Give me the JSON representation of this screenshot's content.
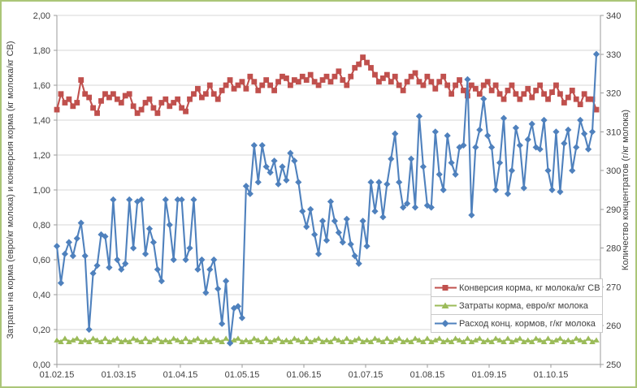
{
  "window": {
    "background": "#ffffff",
    "frame_border_color": "#abc678"
  },
  "chart_data": {
    "type": "line",
    "title": "",
    "grid": true,
    "legend_position": "middle-right",
    "x_axis": {
      "tick_labels": [
        "01.02.15",
        "01.03.15",
        "01.04.15",
        "01.05.15",
        "01.06.15",
        "01.07.15",
        "01.08.15",
        "01.09.15",
        "01.10.15"
      ]
    },
    "left_axis": {
      "title": "Затраты на корма (евро/кг молока) и конверсия корма (кг молока/кг СВ)",
      "min": 0,
      "max": 2,
      "step": 0.2,
      "tick_labels": [
        "0,00",
        "0,20",
        "0,40",
        "0,60",
        "0,80",
        "1,00",
        "1,20",
        "1,40",
        "1,60",
        "1,80",
        "2,00"
      ]
    },
    "right_axis": {
      "title": "Количество концентратов (г/кг молока)",
      "min": 250,
      "max": 340,
      "step": 10,
      "tick_labels": [
        "250",
        "260",
        "270",
        "280",
        "290",
        "300",
        "310",
        "320",
        "330",
        "340"
      ]
    },
    "series": [
      {
        "name": "Конверсия корма, кг молока/кг СВ",
        "color": "#C0504D",
        "axis": "left",
        "marker": "square",
        "values": [
          1.46,
          1.55,
          1.5,
          1.52,
          1.48,
          1.5,
          1.63,
          1.55,
          1.53,
          1.47,
          1.44,
          1.51,
          1.55,
          1.53,
          1.55,
          1.52,
          1.5,
          1.54,
          1.55,
          1.48,
          1.44,
          1.46,
          1.5,
          1.52,
          1.47,
          1.44,
          1.5,
          1.52,
          1.48,
          1.5,
          1.52,
          1.47,
          1.45,
          1.52,
          1.55,
          1.58,
          1.53,
          1.55,
          1.6,
          1.55,
          1.52,
          1.57,
          1.6,
          1.63,
          1.58,
          1.6,
          1.62,
          1.58,
          1.65,
          1.62,
          1.57,
          1.6,
          1.63,
          1.6,
          1.57,
          1.62,
          1.65,
          1.64,
          1.6,
          1.63,
          1.62,
          1.65,
          1.63,
          1.66,
          1.62,
          1.6,
          1.63,
          1.65,
          1.62,
          1.65,
          1.68,
          1.63,
          1.6,
          1.65,
          1.7,
          1.72,
          1.76,
          1.73,
          1.7,
          1.66,
          1.62,
          1.64,
          1.66,
          1.62,
          1.65,
          1.6,
          1.57,
          1.62,
          1.65,
          1.67,
          1.62,
          1.6,
          1.65,
          1.62,
          1.58,
          1.62,
          1.65,
          1.6,
          1.55,
          1.6,
          1.63,
          1.57,
          1.54,
          1.6,
          1.58,
          1.55,
          1.6,
          1.62,
          1.57,
          1.6,
          1.55,
          1.52,
          1.57,
          1.6,
          1.55,
          1.52,
          1.55,
          1.58,
          1.53,
          1.57,
          1.6,
          1.55,
          1.52,
          1.56,
          1.6,
          1.55,
          1.5,
          1.53,
          1.57,
          1.52,
          1.49,
          1.55,
          1.52,
          1.52,
          1.46
        ]
      },
      {
        "name": "Затраты корма, евро/кг молока",
        "color": "#9BBB59",
        "axis": "left",
        "marker": "triangle",
        "values": [
          0.14,
          0.13,
          0.15,
          0.13,
          0.14,
          0.15,
          0.13,
          0.14,
          0.13,
          0.15,
          0.14,
          0.13,
          0.15,
          0.13,
          0.14,
          0.15,
          0.13,
          0.14,
          0.13,
          0.15,
          0.14,
          0.13,
          0.15,
          0.13,
          0.14,
          0.15,
          0.13,
          0.14,
          0.13,
          0.15,
          0.14,
          0.13,
          0.15,
          0.13,
          0.14,
          0.15,
          0.13,
          0.14,
          0.13,
          0.15,
          0.14,
          0.13,
          0.15,
          0.13,
          0.14,
          0.15,
          0.13,
          0.14,
          0.13,
          0.15,
          0.14,
          0.13,
          0.15,
          0.13,
          0.14,
          0.15,
          0.13,
          0.14,
          0.13,
          0.15,
          0.14,
          0.13,
          0.15,
          0.13,
          0.14,
          0.15,
          0.13,
          0.14,
          0.13,
          0.15,
          0.14,
          0.13,
          0.15,
          0.13,
          0.14,
          0.15,
          0.13,
          0.14,
          0.13,
          0.15,
          0.14,
          0.13,
          0.15,
          0.13,
          0.14,
          0.15,
          0.13,
          0.14,
          0.13,
          0.15,
          0.14,
          0.13,
          0.15,
          0.13,
          0.14,
          0.15,
          0.13,
          0.14,
          0.13,
          0.15,
          0.14,
          0.13,
          0.15,
          0.13,
          0.14,
          0.15,
          0.13,
          0.14,
          0.13,
          0.15,
          0.14,
          0.13,
          0.15,
          0.13,
          0.14,
          0.15,
          0.13,
          0.14,
          0.13,
          0.15,
          0.14,
          0.13,
          0.15,
          0.13,
          0.14,
          0.15,
          0.13,
          0.14,
          0.13,
          0.15,
          0.14,
          0.13,
          0.15,
          0.13,
          0.14
        ]
      },
      {
        "name": "Расход конц. кормов, г/кг молока",
        "color": "#4F81BD",
        "axis": "right",
        "marker": "diamond",
        "values": [
          280.5,
          271,
          278.5,
          281.5,
          278,
          282.5,
          286.5,
          278,
          259,
          273.5,
          275.5,
          283.5,
          283,
          275,
          292.5,
          277,
          274.5,
          276,
          292.5,
          280,
          292,
          292.5,
          278.5,
          285,
          281.5,
          274.5,
          271.5,
          292.5,
          286,
          277,
          292.5,
          292.5,
          277,
          280,
          292.5,
          274.5,
          277,
          268.5,
          274.5,
          277,
          269.5,
          260.5,
          271.5,
          255.5,
          264.5,
          265,
          262,
          296,
          294,
          306.5,
          297,
          306.5,
          301,
          299.5,
          302.5,
          296.5,
          301,
          297.5,
          304.5,
          302.5,
          297,
          289.5,
          285.5,
          290,
          283.5,
          278.5,
          287,
          282,
          292,
          287,
          284,
          281.5,
          287.5,
          281,
          278,
          276,
          287,
          280.5,
          297,
          289.5,
          297,
          288,
          296.5,
          303,
          309.5,
          297,
          290.5,
          291.5,
          303,
          290.5,
          314,
          301,
          291,
          290.5,
          310,
          299,
          295,
          309,
          302,
          299,
          306,
          306.5,
          323.5,
          288.5,
          306,
          310.5,
          318.5,
          309,
          306,
          295,
          302,
          313.5,
          294,
          300,
          311,
          306.5,
          295.5,
          308,
          312,
          306,
          305.5,
          313,
          300,
          295,
          310,
          294.5,
          307,
          310.5,
          300,
          306,
          313,
          309.5,
          305.5,
          310,
          330
        ]
      }
    ]
  }
}
